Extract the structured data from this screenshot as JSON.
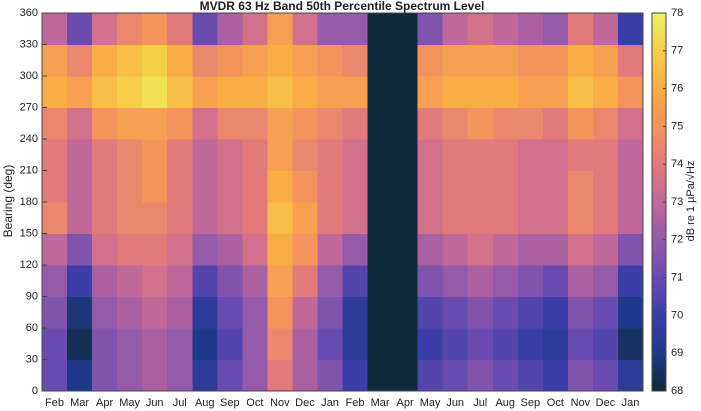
{
  "chart_data": {
    "type": "heatmap",
    "title": "MVDR 63 Hz Band 50th Percentile Spectrum Level",
    "y_label": "Bearing (deg)",
    "colorbar_label": "dB re 1 µPa/√Hz",
    "categories": [
      "Feb",
      "Mar",
      "Apr",
      "May",
      "Jun",
      "Jul",
      "Aug",
      "Sep",
      "Oct",
      "Nov",
      "Dec",
      "Jan",
      "Feb",
      "Mar",
      "Apr",
      "May",
      "Jun",
      "Jul",
      "Aug",
      "Sep",
      "Oct",
      "Nov",
      "Dec",
      "Jan"
    ],
    "ylim": [
      0,
      360
    ],
    "yticks": [
      0,
      30,
      60,
      90,
      120,
      150,
      180,
      210,
      240,
      270,
      300,
      330,
      360
    ],
    "clim": [
      68,
      78
    ],
    "cticks": [
      68,
      69,
      70,
      71,
      72,
      73,
      74,
      75,
      76,
      77,
      78
    ],
    "colormap": [
      "#0e2a3b",
      "#1f3a8a",
      "#3b3ea8",
      "#6a4cb0",
      "#955aa8",
      "#c0689a",
      "#e27a7c",
      "#f4935c",
      "#f9ad45",
      "#f6cf48",
      "#eef060"
    ],
    "z": [
      [
        71,
        71,
        71.5,
        72,
        73,
        74.5,
        74,
        74,
        74.5,
        76,
        75.5,
        73
      ],
      [
        69,
        68.3,
        68.8,
        70,
        71.5,
        73,
        73,
        73,
        73.5,
        75.5,
        74.5,
        71
      ],
      [
        71.5,
        71.5,
        72,
        72.5,
        73.5,
        74,
        74,
        74,
        75,
        76.5,
        76,
        73.5
      ],
      [
        72,
        72,
        72.5,
        73,
        74,
        74.5,
        74.5,
        74.5,
        75.5,
        77,
        76.5,
        74.5
      ],
      [
        72.5,
        72.5,
        73,
        73.5,
        74,
        74.5,
        75,
        75,
        75.5,
        77.5,
        77,
        75
      ],
      [
        72,
        72,
        72.5,
        73,
        73.5,
        74,
        74,
        74,
        75,
        76.5,
        76,
        74
      ],
      [
        69.5,
        69,
        69.5,
        70.5,
        72,
        73,
        73,
        73,
        73.5,
        75.5,
        74.5,
        71
      ],
      [
        71,
        70.5,
        71,
        71.5,
        72.5,
        73.5,
        73.5,
        73.5,
        74.5,
        76,
        75,
        72.5
      ],
      [
        72,
        72,
        72,
        72.5,
        73.5,
        74,
        74,
        74,
        74.5,
        76,
        75.5,
        73.5
      ],
      [
        74,
        74.5,
        75,
        75.5,
        76,
        76.5,
        76,
        75.5,
        75.5,
        76.5,
        76,
        75.5
      ],
      [
        72.5,
        72.5,
        73,
        74,
        75,
        75.5,
        75,
        74.5,
        75,
        76,
        75.5,
        73.5
      ],
      [
        71.5,
        71,
        71.5,
        72,
        73,
        74,
        74,
        74,
        74.5,
        75.5,
        75,
        72
      ],
      [
        70,
        69.5,
        69.5,
        70.5,
        72,
        73.5,
        73.5,
        73.5,
        74,
        75.5,
        74.5,
        72
      ],
      [
        68,
        68,
        68,
        68,
        68,
        68,
        68,
        68,
        68,
        68,
        68,
        68
      ],
      [
        68,
        68,
        68,
        68,
        68,
        68,
        68,
        68,
        68,
        68,
        68,
        68
      ],
      [
        70.5,
        70,
        70.5,
        71.5,
        72.5,
        73.5,
        73.5,
        73.5,
        74,
        75.5,
        75,
        71.5
      ],
      [
        71,
        70.5,
        71,
        72,
        73,
        74,
        74,
        74,
        74.5,
        76,
        75.5,
        73
      ],
      [
        71.5,
        71,
        71.5,
        72.5,
        73.5,
        74,
        74,
        74,
        75,
        76,
        75.5,
        73.5
      ],
      [
        71,
        70.5,
        71,
        72,
        73,
        74,
        74,
        74,
        74.5,
        76,
        75.5,
        73
      ],
      [
        70.5,
        70,
        70.5,
        71.5,
        72.5,
        73.5,
        73.5,
        73.5,
        74.5,
        75.5,
        75,
        72.5
      ],
      [
        70,
        69.5,
        70,
        71,
        72.5,
        73.5,
        73.5,
        73.5,
        74,
        75.5,
        75,
        72
      ],
      [
        71.5,
        71,
        71.5,
        72.5,
        73.5,
        74.5,
        74.5,
        74,
        75,
        76.5,
        76,
        74
      ],
      [
        71,
        70.5,
        71,
        72,
        73,
        74,
        74,
        74,
        74.5,
        76,
        75.5,
        73
      ],
      [
        69.5,
        68.5,
        69,
        70,
        71.5,
        73,
        73,
        73,
        73.5,
        75,
        74,
        70
      ]
    ]
  }
}
